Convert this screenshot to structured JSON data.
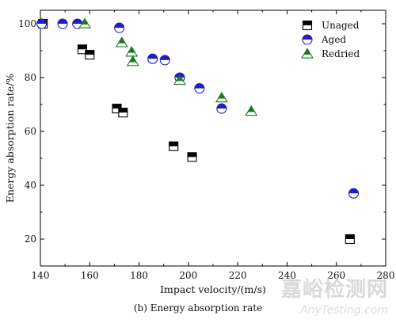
{
  "chart_data": {
    "type": "scatter",
    "xlabel": "Impact velocity/(m/s)",
    "ylabel": "Energy absorption rate/%",
    "xlim": [
      140,
      280
    ],
    "ylim": [
      10,
      105
    ],
    "xticks": [
      140,
      160,
      180,
      200,
      220,
      240,
      260,
      280
    ],
    "yticks": [
      20,
      40,
      60,
      80,
      100
    ],
    "grid": false,
    "legend_position": "top-right",
    "series": [
      {
        "name": "Unaged",
        "marker": "half-filled-square",
        "color": "#000000",
        "points": [
          {
            "x": 141,
            "y": 100
          },
          {
            "x": 157,
            "y": 90.5
          },
          {
            "x": 160,
            "y": 88.5
          },
          {
            "x": 171,
            "y": 68.5
          },
          {
            "x": 173.5,
            "y": 67
          },
          {
            "x": 194,
            "y": 54.5
          },
          {
            "x": 201.5,
            "y": 50.5
          },
          {
            "x": 265.5,
            "y": 20
          }
        ]
      },
      {
        "name": "Aged",
        "marker": "half-filled-circle",
        "color": "#1f1fbf",
        "points": [
          {
            "x": 140.5,
            "y": 100
          },
          {
            "x": 149,
            "y": 100
          },
          {
            "x": 155,
            "y": 100
          },
          {
            "x": 172,
            "y": 98.5
          },
          {
            "x": 185.5,
            "y": 87
          },
          {
            "x": 190.5,
            "y": 86.5
          },
          {
            "x": 196.5,
            "y": 80
          },
          {
            "x": 204.5,
            "y": 76
          },
          {
            "x": 213.5,
            "y": 68.5
          },
          {
            "x": 267,
            "y": 37
          }
        ]
      },
      {
        "name": "Redried",
        "marker": "half-filled-triangle",
        "color": "#1a7a1a",
        "points": [
          {
            "x": 158,
            "y": 100
          },
          {
            "x": 173,
            "y": 93
          },
          {
            "x": 177,
            "y": 89.5
          },
          {
            "x": 177.5,
            "y": 86
          },
          {
            "x": 196.5,
            "y": 79
          },
          {
            "x": 213.5,
            "y": 72.5
          },
          {
            "x": 225.5,
            "y": 67.5
          }
        ]
      }
    ]
  },
  "caption": "(b) Energy absorption rate",
  "watermark": {
    "cn": "嘉峪检测网",
    "en": "AnyTesting.com"
  }
}
